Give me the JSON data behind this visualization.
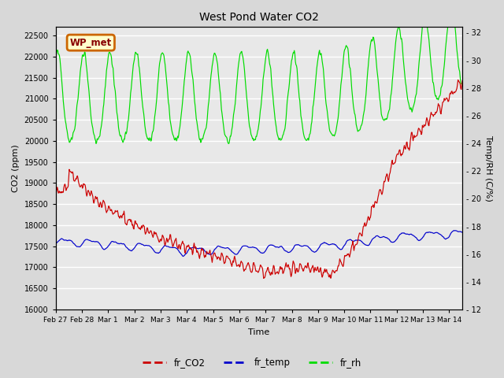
{
  "title": "West Pond Water CO2",
  "xlabel": "Time",
  "ylabel_left": "CO2 (ppm)",
  "ylabel_right": "Temp/RH (C/%)",
  "xlim_days": [
    0,
    15.5
  ],
  "ylim_left": [
    16000,
    22700
  ],
  "ylim_right": [
    12,
    32.4
  ],
  "yticks_left": [
    16000,
    16500,
    17000,
    17500,
    18000,
    18500,
    19000,
    19500,
    20000,
    20500,
    21000,
    21500,
    22000,
    22500
  ],
  "yticks_right": [
    12,
    14,
    16,
    18,
    20,
    22,
    24,
    26,
    28,
    30,
    32
  ],
  "xtick_labels": [
    "Feb 27",
    "Feb 28",
    "Mar 1",
    "Mar 2",
    "Mar 3",
    "Mar 4",
    "Mar 5",
    "Mar 6",
    "Mar 7",
    "Mar 8",
    "Mar 9",
    "Mar 10",
    "Mar 11",
    "Mar 12",
    "Mar 13",
    "Mar 14"
  ],
  "xtick_positions": [
    0,
    1,
    2,
    3,
    4,
    5,
    6,
    7,
    8,
    9,
    10,
    11,
    12,
    13,
    14,
    15
  ],
  "bg_color": "#d8d8d8",
  "plot_bg_color": "#e8e8e8",
  "line_co2_color": "#cc0000",
  "line_temp_color": "#0000cc",
  "line_rh_color": "#00dd00",
  "label_co2": "fr_CO2",
  "label_temp": "fr_temp",
  "label_rh": "fr_rh",
  "annotation_label": "WP_met",
  "annotation_box_color": "#ffffcc",
  "annotation_border_color": "#cc6600",
  "annotation_text_color": "#880000",
  "figsize": [
    6.4,
    4.8
  ],
  "dpi": 100
}
